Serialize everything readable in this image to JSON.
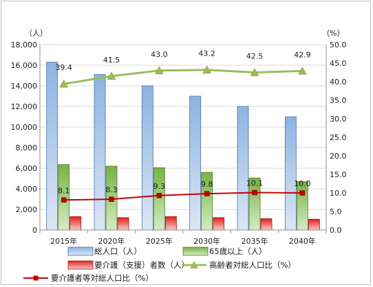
{
  "chart_data": {
    "type": "bar",
    "categories": [
      "2015年",
      "2020年",
      "2025年",
      "2030年",
      "2035年",
      "2040年"
    ],
    "left_axis": {
      "unit": "（人）",
      "ylim": [
        0,
        18000
      ],
      "ticks": [
        "0",
        "2,000",
        "4,000",
        "6,000",
        "8,000",
        "10,000",
        "12,000",
        "14,000",
        "16,000",
        "18,000"
      ]
    },
    "right_axis": {
      "unit": "（%）",
      "ylim": [
        0,
        50
      ],
      "ticks": [
        "0.0",
        "5.0",
        "10.0",
        "15.0",
        "20.0",
        "25.0",
        "30.0",
        "35.0",
        "40.0",
        "45.0",
        "50.0"
      ]
    },
    "grid": true,
    "legend_position": "bottom",
    "series": [
      {
        "name": "総人口（人）",
        "type": "bar",
        "axis": "left",
        "color": "#4f81bd",
        "values": [
          16300,
          15100,
          14000,
          13000,
          12000,
          11000
        ]
      },
      {
        "name": "65歳以上（人）",
        "type": "bar",
        "axis": "left",
        "color": "#77b244",
        "values": [
          6350,
          6200,
          6050,
          5600,
          5050,
          4700
        ]
      },
      {
        "name": "要介護（支援）者数（人）",
        "type": "bar",
        "axis": "left",
        "color": "#e0201c",
        "values": [
          1300,
          1200,
          1300,
          1200,
          1100,
          1050
        ]
      },
      {
        "name": "高齢者対総人口比（%）",
        "type": "line",
        "axis": "right",
        "color": "#9bbb59",
        "marker": "triangle",
        "values": [
          39.4,
          41.5,
          43.0,
          43.2,
          42.5,
          42.9
        ],
        "labels": [
          "39.4",
          "41.5",
          "43.0",
          "43.2",
          "42.5",
          "42.9"
        ]
      },
      {
        "name": "要介護者等対総人口比（%）",
        "type": "line",
        "axis": "right",
        "color": "#c00000",
        "marker": "square",
        "values": [
          8.1,
          8.3,
          9.3,
          9.8,
          10.1,
          10.0
        ],
        "labels": [
          "8.1",
          "8.3",
          "9.3",
          "9.8",
          "10.1",
          "10.0"
        ]
      }
    ]
  }
}
